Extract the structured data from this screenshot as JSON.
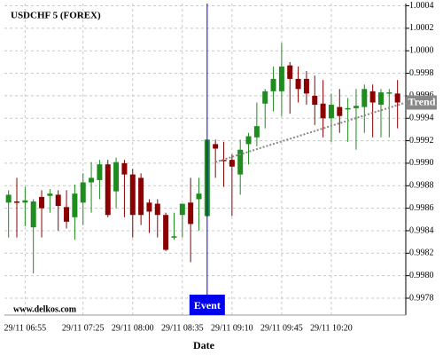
{
  "chart_data": {
    "type": "candlestick",
    "title": "USDCHF 5 (FOREX)",
    "watermark": "www.delkos.com",
    "x_label": "Date",
    "categories": [
      null,
      null,
      "29/11 06:55",
      null,
      null,
      null,
      null,
      null,
      null,
      "29/11 07:25",
      null,
      null,
      null,
      null,
      null,
      "29/11 08:00",
      null,
      null,
      null,
      null,
      null,
      "29/11 08:35",
      null,
      null,
      null,
      null,
      null,
      "29/11 09:10",
      null,
      null,
      null,
      null,
      null,
      "29/11 09:45",
      null,
      null,
      null,
      null,
      null,
      "29/11 10:20",
      null,
      null,
      null,
      null,
      null,
      null,
      null,
      null
    ],
    "open": [
      0.99865,
      0.99866,
      0.99865,
      0.99843,
      0.9987,
      0.99871,
      0.99872,
      0.99861,
      0.99852,
      0.99865,
      0.99883,
      0.99885,
      0.99899,
      0.99875,
      0.999,
      0.9989,
      0.99887,
      0.99865,
      0.99864,
      0.99854,
      0.99834,
      0.99854,
      0.99865,
      0.99868,
      0.99853,
      0.99917,
      0.99903,
      0.99903,
      0.9989,
      0.99917,
      0.99923,
      0.99953,
      0.99964,
      0.99964,
      0.99987,
      0.99975,
      0.99975,
      0.9996,
      0.99953,
      0.9994,
      0.9995,
      0.99948,
      0.99949,
      0.9995,
      0.99964,
      0.99952,
      0.99962,
      0.99962
    ],
    "high": [
      0.99876,
      0.99887,
      0.99879,
      0.99868,
      0.99876,
      0.99877,
      0.99876,
      0.99876,
      0.99881,
      0.99891,
      0.99901,
      0.99903,
      0.99903,
      0.99905,
      0.99903,
      0.99895,
      0.99891,
      0.99868,
      0.99868,
      0.99856,
      0.99856,
      0.99864,
      0.99887,
      0.99887,
      0.99921,
      0.99921,
      0.99919,
      0.99908,
      0.99921,
      0.99927,
      0.99954,
      0.99966,
      0.99986,
      1.00007,
      0.9999,
      0.99986,
      0.99982,
      0.99978,
      0.99974,
      0.99962,
      0.99966,
      0.99958,
      0.99966,
      0.9997,
      0.9997,
      0.99966,
      0.99966,
      0.99974
    ],
    "low": [
      0.99834,
      0.99834,
      0.99844,
      0.99802,
      0.99834,
      0.99856,
      0.9984,
      0.99842,
      0.99832,
      0.99845,
      0.99856,
      0.99868,
      0.99852,
      0.9986,
      0.99852,
      0.99834,
      0.99845,
      0.99838,
      0.99834,
      0.99822,
      0.99832,
      0.99834,
      0.99812,
      0.9984,
      0.99852,
      0.99887,
      0.99879,
      0.99853,
      0.99872,
      0.99899,
      0.99915,
      0.99931,
      0.99946,
      0.99942,
      0.99944,
      0.99954,
      0.99952,
      0.99934,
      0.99923,
      0.99919,
      0.99927,
      0.99919,
      0.99912,
      0.99927,
      0.99923,
      0.99923,
      0.99923,
      0.99931
    ],
    "close": [
      0.99872,
      0.99865,
      0.99867,
      0.99866,
      0.9986,
      0.99873,
      0.99862,
      0.99848,
      0.99873,
      0.99883,
      0.99887,
      0.99899,
      0.99854,
      0.99901,
      0.9989,
      0.99854,
      0.99854,
      0.99857,
      0.99854,
      0.99823,
      0.99835,
      0.99864,
      0.99846,
      0.99873,
      0.99921,
      0.99913,
      0.99902,
      0.99897,
      0.99912,
      0.99924,
      0.99933,
      0.99964,
      0.99975,
      0.99986,
      0.99975,
      0.99966,
      0.99962,
      0.99952,
      0.9994,
      0.99952,
      0.99942,
      0.99949,
      0.99951,
      0.99966,
      0.99954,
      0.99963,
      0.99963,
      0.99954
    ],
    "up_color": "#1e8c1e",
    "down_color": "#8b0000",
    "ylim": [
      0.99765,
      1.00042
    ],
    "yticks": [
      1.0004,
      1.0002,
      {
        "value": 1,
        "label": "1.0000"
      },
      0.9998,
      0.9996,
      0.9994,
      0.9992,
      {
        "value": 0.999,
        "label": "0.9990"
      },
      0.9988,
      0.9986,
      0.9984,
      0.9982,
      {
        "value": 0.998,
        "label": "0.9980"
      },
      0.9978
    ],
    "grid": true,
    "event": {
      "label": "Event",
      "index": 24,
      "color": "#0000ee"
    },
    "trend": {
      "label": "Trend",
      "x": [
        25,
        48
      ],
      "values": [
        0.99901,
        0.99954
      ],
      "color": "#888888"
    }
  }
}
